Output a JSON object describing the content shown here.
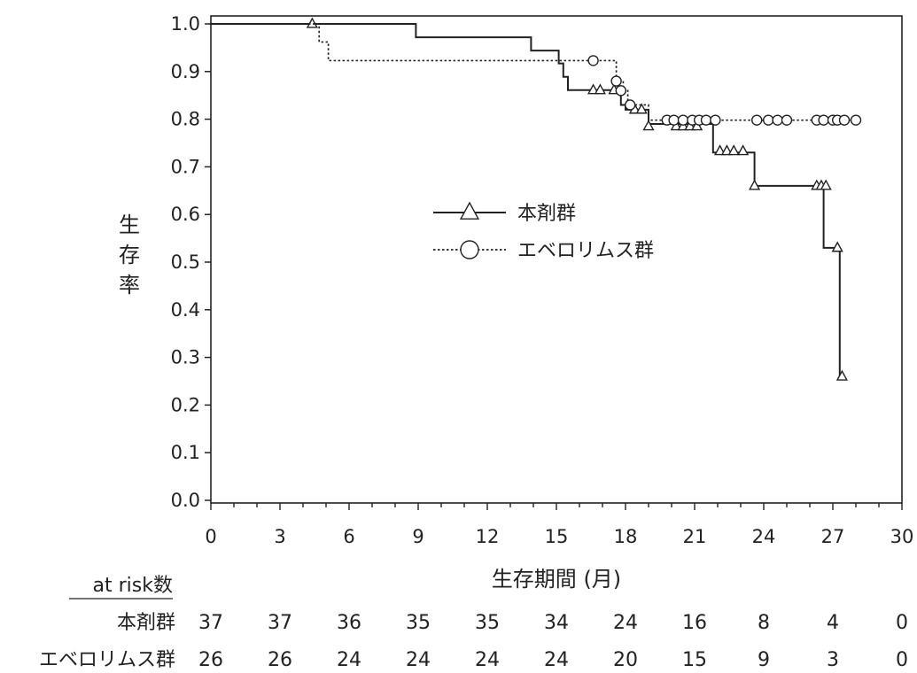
{
  "chart_data": {
    "type": "line",
    "subtype": "kaplan-meier",
    "xlabel": "生存期間 (月)",
    "ylabel": "生存率",
    "xlim": [
      0,
      30
    ],
    "ylim": [
      0,
      1.0
    ],
    "xticks": [
      0,
      3,
      6,
      9,
      12,
      15,
      18,
      21,
      24,
      27,
      30
    ],
    "yticks": [
      "0.0",
      "0.1",
      "0.2",
      "0.3",
      "0.4",
      "0.5",
      "0.6",
      "0.7",
      "0.8",
      "0.9",
      "1.0"
    ],
    "grid": false,
    "legend_position": "center-right",
    "series": [
      {
        "name": "本剤群",
        "line_style": "solid",
        "censor_marker": "triangle",
        "steps": [
          [
            0,
            1.0
          ],
          [
            8.9,
            0.972
          ],
          [
            13.9,
            0.944
          ],
          [
            15.1,
            0.917
          ],
          [
            15.3,
            0.889
          ],
          [
            15.5,
            0.861
          ],
          [
            17.8,
            0.83
          ],
          [
            18.0,
            0.82
          ],
          [
            19.0,
            0.79
          ],
          [
            21.8,
            0.73
          ],
          [
            23.6,
            0.66
          ],
          [
            26.6,
            0.53
          ],
          [
            27.3,
            0.26
          ]
        ],
        "censored": [
          [
            4.4,
            1.0
          ],
          [
            16.6,
            0.861
          ],
          [
            16.9,
            0.861
          ],
          [
            17.5,
            0.861
          ],
          [
            18.4,
            0.82
          ],
          [
            18.7,
            0.82
          ],
          [
            19.0,
            0.785
          ],
          [
            20.2,
            0.785
          ],
          [
            20.5,
            0.785
          ],
          [
            20.8,
            0.785
          ],
          [
            21.1,
            0.785
          ],
          [
            22.1,
            0.733
          ],
          [
            22.4,
            0.733
          ],
          [
            22.7,
            0.733
          ],
          [
            23.1,
            0.733
          ],
          [
            23.6,
            0.66
          ],
          [
            26.3,
            0.66
          ],
          [
            26.5,
            0.66
          ],
          [
            26.7,
            0.66
          ],
          [
            27.2,
            0.53
          ],
          [
            27.4,
            0.26
          ]
        ]
      },
      {
        "name": "エベロリムス群",
        "line_style": "dotted",
        "censor_marker": "circle",
        "steps": [
          [
            0,
            1.0
          ],
          [
            4.7,
            0.962
          ],
          [
            5.1,
            0.923
          ],
          [
            17.6,
            0.88
          ],
          [
            17.9,
            0.86
          ],
          [
            18.1,
            0.83
          ],
          [
            19.0,
            0.798
          ]
        ],
        "censored": [
          [
            16.6,
            0.923
          ],
          [
            17.6,
            0.88
          ],
          [
            17.8,
            0.86
          ],
          [
            18.2,
            0.83
          ],
          [
            19.8,
            0.798
          ],
          [
            20.1,
            0.798
          ],
          [
            20.5,
            0.798
          ],
          [
            20.9,
            0.798
          ],
          [
            21.2,
            0.798
          ],
          [
            21.5,
            0.798
          ],
          [
            21.9,
            0.798
          ],
          [
            23.7,
            0.798
          ],
          [
            24.2,
            0.798
          ],
          [
            24.6,
            0.798
          ],
          [
            25.0,
            0.798
          ],
          [
            26.3,
            0.798
          ],
          [
            26.6,
            0.798
          ],
          [
            27.0,
            0.798
          ],
          [
            27.2,
            0.798
          ],
          [
            27.5,
            0.798
          ],
          [
            28.0,
            0.798
          ]
        ]
      }
    ],
    "at_risk": {
      "title": "at risk数",
      "times": [
        0,
        3,
        6,
        9,
        12,
        15,
        18,
        21,
        24,
        27,
        30
      ],
      "rows": [
        {
          "label": "本剤群",
          "values": [
            37,
            37,
            36,
            35,
            35,
            34,
            24,
            16,
            8,
            4,
            0
          ]
        },
        {
          "label": "エベロリムス群",
          "values": [
            26,
            26,
            24,
            24,
            24,
            24,
            20,
            15,
            9,
            3,
            0
          ]
        }
      ]
    }
  }
}
